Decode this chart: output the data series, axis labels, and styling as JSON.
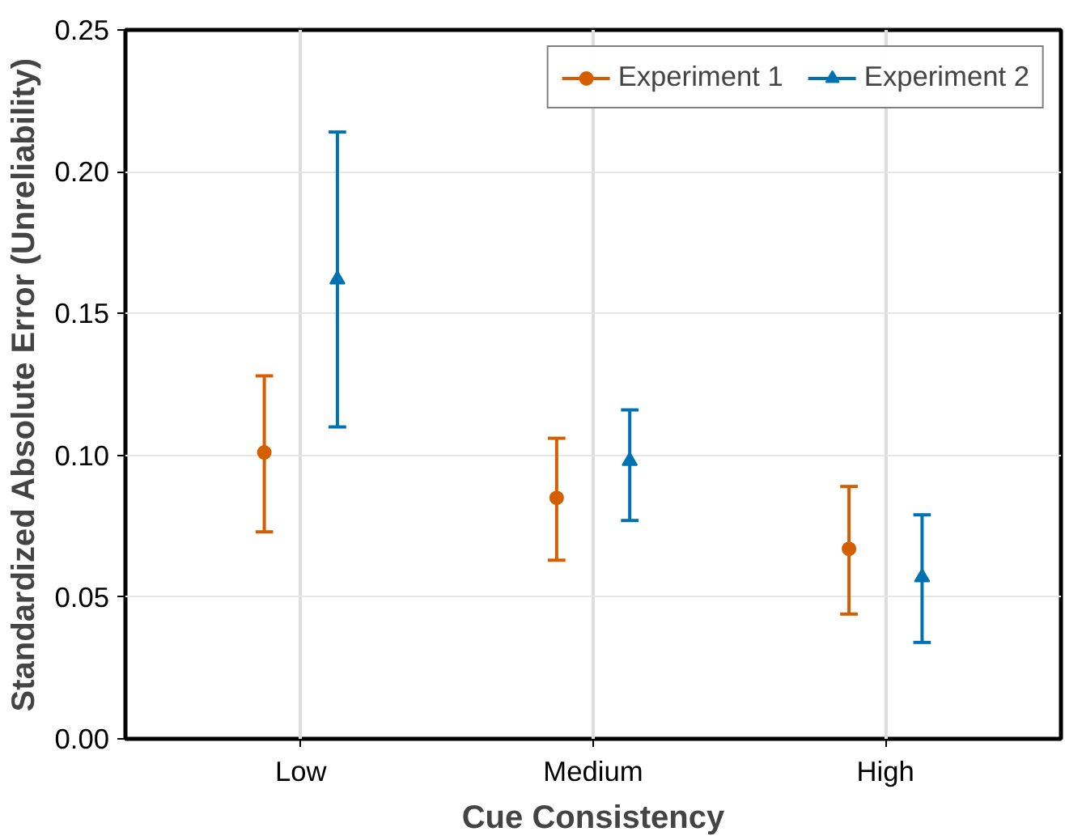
{
  "chart_data": {
    "type": "scatter",
    "xlabel": "Cue Consistency",
    "ylabel": "Standardized Absolute Error (Unreliability)",
    "categories": [
      "Low",
      "Medium",
      "High"
    ],
    "series": [
      {
        "name": "Experiment 1",
        "color": "#d55e00",
        "marker": "circle",
        "values": [
          0.101,
          0.085,
          0.067
        ],
        "errors": [
          [
            0.073,
            0.128
          ],
          [
            0.063,
            0.106
          ],
          [
            0.044,
            0.089
          ]
        ]
      },
      {
        "name": "Experiment 2",
        "color": "#0072b2",
        "marker": "triangle",
        "values": [
          0.162,
          0.098,
          0.057
        ],
        "errors": [
          [
            0.11,
            0.214
          ],
          [
            0.077,
            0.116
          ],
          [
            0.034,
            0.079
          ]
        ]
      }
    ],
    "ylim": [
      0,
      0.25
    ],
    "yticks": [
      {
        "value": 0,
        "label": "0.00"
      },
      {
        "value": 0.05,
        "label": "0.05"
      },
      {
        "value": 0.1,
        "label": "0.10"
      },
      {
        "value": 0.15,
        "label": "0.15"
      },
      {
        "value": 0.2,
        "label": "0.20"
      },
      {
        "value": 0.25,
        "label": "0.25"
      }
    ],
    "grid": true,
    "legend": "top right"
  }
}
